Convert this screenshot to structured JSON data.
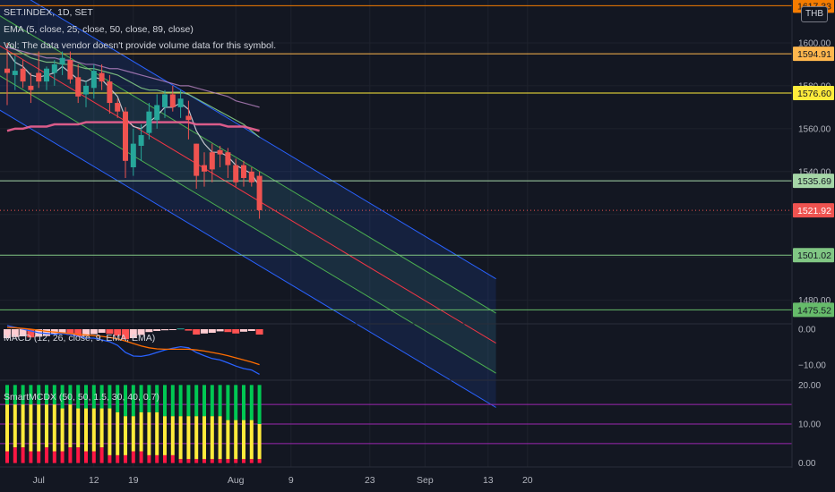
{
  "currency_button": "THB",
  "legend": {
    "symbol": "SET.INDEX, 1D, SET",
    "ema": "EMA (5, close, 25, close, 50, close, 89, close)",
    "vol": "Vol: The data vendor doesn't provide volume data for this symbol.",
    "macd": "MACD (12, 26, close, 9, EMA, EMA)",
    "smart": "SmartMCDX (50, 50, 1.5, 30, 40, 0.7)"
  },
  "colors": {
    "background": "#131722",
    "up": "#26a69a",
    "down": "#ef5350",
    "grid": "#1e222d",
    "text": "#b2b5be"
  },
  "chart_data": {
    "type": "candlestick",
    "price_axis": {
      "ticks": [
        1480,
        1500,
        1520,
        1540,
        1560,
        1580,
        1600
      ],
      "tick_labels": [
        "1480.00",
        "1500.00",
        "1520.00",
        "1540.00",
        "1560.00",
        "1580.00",
        "1600.00"
      ],
      "range": [
        1469,
        1620
      ]
    },
    "date_axis": {
      "labels": [
        "Jul",
        "12",
        "19",
        "Aug",
        "9",
        "23",
        "Sep",
        "13",
        "20"
      ],
      "label_day_index": [
        4,
        11,
        16,
        29,
        36,
        46,
        53,
        61,
        66
      ]
    },
    "horizontal_levels": [
      {
        "price": 1617.33,
        "label": "1617.33",
        "color": "#f57c00"
      },
      {
        "price": 1594.91,
        "label": "1594.91",
        "color": "#ffb74d"
      },
      {
        "price": 1576.6,
        "label": "1576.60",
        "color": "#ffeb3b"
      },
      {
        "price": 1535.69,
        "label": "1535.69",
        "color": "#a5d6a7"
      },
      {
        "price": 1501.02,
        "label": "1501.02",
        "color": "#81c784"
      },
      {
        "price": 1475.52,
        "label": "1475.52",
        "color": "#66bb6a"
      }
    ],
    "last_price": {
      "price": 1521.92,
      "label": "1521.92",
      "color": "#ef5350"
    },
    "candles": [
      {
        "o": 1588,
        "h": 1600,
        "l": 1571,
        "c": 1586
      },
      {
        "o": 1585,
        "h": 1594,
        "l": 1578,
        "c": 1587
      },
      {
        "o": 1588,
        "h": 1592,
        "l": 1579,
        "c": 1582
      },
      {
        "o": 1580,
        "h": 1586,
        "l": 1572,
        "c": 1578
      },
      {
        "o": 1586,
        "h": 1596,
        "l": 1579,
        "c": 1582
      },
      {
        "o": 1582,
        "h": 1589,
        "l": 1578,
        "c": 1588
      },
      {
        "o": 1586,
        "h": 1592,
        "l": 1580,
        "c": 1590
      },
      {
        "o": 1590,
        "h": 1596,
        "l": 1585,
        "c": 1593
      },
      {
        "o": 1592,
        "h": 1596,
        "l": 1581,
        "c": 1583
      },
      {
        "o": 1584,
        "h": 1590,
        "l": 1572,
        "c": 1575
      },
      {
        "o": 1576,
        "h": 1582,
        "l": 1570,
        "c": 1580
      },
      {
        "o": 1579,
        "h": 1590,
        "l": 1574,
        "c": 1587
      },
      {
        "o": 1586,
        "h": 1590,
        "l": 1578,
        "c": 1582
      },
      {
        "o": 1582,
        "h": 1585,
        "l": 1567,
        "c": 1572
      },
      {
        "o": 1572,
        "h": 1574,
        "l": 1565,
        "c": 1568
      },
      {
        "o": 1568,
        "h": 1570,
        "l": 1537,
        "c": 1545
      },
      {
        "o": 1542,
        "h": 1560,
        "l": 1538,
        "c": 1553
      },
      {
        "o": 1552,
        "h": 1562,
        "l": 1545,
        "c": 1557
      },
      {
        "o": 1558,
        "h": 1572,
        "l": 1555,
        "c": 1568
      },
      {
        "o": 1564,
        "h": 1576,
        "l": 1560,
        "c": 1571
      },
      {
        "o": 1570,
        "h": 1578,
        "l": 1565,
        "c": 1576
      },
      {
        "o": 1576,
        "h": 1580,
        "l": 1568,
        "c": 1570
      },
      {
        "o": 1570,
        "h": 1578,
        "l": 1565,
        "c": 1574
      },
      {
        "o": 1566,
        "h": 1573,
        "l": 1555,
        "c": 1564
      },
      {
        "o": 1553,
        "h": 1553,
        "l": 1532,
        "c": 1538
      },
      {
        "o": 1543,
        "h": 1549,
        "l": 1533,
        "c": 1540
      },
      {
        "o": 1549,
        "h": 1553,
        "l": 1535,
        "c": 1541
      },
      {
        "o": 1550,
        "h": 1552,
        "l": 1542,
        "c": 1548
      },
      {
        "o": 1549,
        "h": 1551,
        "l": 1537,
        "c": 1543
      },
      {
        "o": 1543,
        "h": 1546,
        "l": 1533,
        "c": 1535
      },
      {
        "o": 1543,
        "h": 1545,
        "l": 1533,
        "c": 1537
      },
      {
        "o": 1540,
        "h": 1542,
        "l": 1533,
        "c": 1535
      },
      {
        "o": 1538,
        "h": 1540,
        "l": 1518,
        "c": 1522
      }
    ],
    "ema_lines": [
      {
        "color": "#d1d4dc",
        "values": [
          1596,
          1591,
          1589,
          1585,
          1584,
          1585,
          1586,
          1589,
          1586,
          1583,
          1582,
          1584,
          1583,
          1579,
          1575,
          1565,
          1561,
          1560,
          1563,
          1566,
          1570,
          1570,
          1572,
          1569,
          1559,
          1553,
          1549,
          1549,
          1547,
          1543,
          1541,
          1539,
          1533
        ]
      },
      {
        "color": "#81c784",
        "values": [
          1600,
          1597,
          1595,
          1593,
          1592,
          1591,
          1591,
          1590,
          1590,
          1589,
          1588,
          1588,
          1587,
          1586,
          1585,
          1583,
          1581,
          1579,
          1578,
          1578,
          1577,
          1577,
          1577,
          1576,
          1574,
          1572,
          1570,
          1568,
          1566,
          1564,
          1562,
          1559,
          1556
        ]
      },
      {
        "color": "#ce93d8",
        "values": [
          1598,
          1597,
          1596,
          1595,
          1594,
          1593,
          1593,
          1592,
          1592,
          1591,
          1590,
          1590,
          1589,
          1588,
          1588,
          1587,
          1586,
          1585,
          1584,
          1583,
          1582,
          1581,
          1580,
          1580,
          1579,
          1578,
          1577,
          1576,
          1575,
          1573,
          1572,
          1571,
          1570
        ]
      },
      {
        "color": "#f06292",
        "values": [
          1559,
          1560,
          1560,
          1561,
          1561,
          1561,
          1562,
          1562,
          1562,
          1562,
          1563,
          1563,
          1563,
          1563,
          1563,
          1563,
          1563,
          1563,
          1563,
          1563,
          1563,
          1563,
          1563,
          1563,
          1562,
          1562,
          1562,
          1562,
          1561,
          1561,
          1561,
          1560,
          1559
        ]
      }
    ],
    "channel": {
      "start_day": -2,
      "end_day": 62,
      "mid_start": 1601,
      "mid_end": 1460,
      "inner_offset": 14,
      "outer_offset": 30
    },
    "macd": {
      "ticks": [
        0,
        -10
      ],
      "tick_labels": [
        "0.00",
        "−10.00"
      ],
      "range": [
        -14,
        1.5
      ],
      "histogram": [
        -2.5,
        -2.2,
        -2.0,
        -2.3,
        -2.1,
        -1.9,
        -1.5,
        -1.2,
        -1.6,
        -2.0,
        -1.9,
        -1.4,
        -1.0,
        -1.3,
        -1.8,
        -2.8,
        -2.5,
        -1.6,
        -0.8,
        -0.5,
        -0.3,
        -0.2,
        0.2,
        -0.4,
        -1.5,
        -1.2,
        -1.0,
        -0.6,
        -0.8,
        -1.2,
        -0.7,
        -0.5,
        -1.5
      ],
      "macd_line": [
        1.0,
        0.5,
        0.0,
        -0.5,
        -1.0,
        -1.2,
        -1.4,
        -1.2,
        -1.5,
        -2.0,
        -2.5,
        -2.5,
        -3.0,
        -3.5,
        -4.5,
        -6.5,
        -7.5,
        -7.6,
        -7.2,
        -6.5,
        -5.8,
        -5.3,
        -4.9,
        -5.2,
        -6.5,
        -7.4,
        -8.2,
        -8.6,
        -9.4,
        -10.3,
        -11.0,
        -11.4,
        -12.6
      ],
      "signal_line": [
        0.5,
        0.4,
        0.2,
        0.0,
        -0.3,
        -0.6,
        -0.8,
        -1.0,
        -1.2,
        -1.4,
        -1.6,
        -1.8,
        -2.0,
        -2.3,
        -2.7,
        -3.3,
        -4.0,
        -4.7,
        -5.2,
        -5.5,
        -5.6,
        -5.6,
        -5.6,
        -5.6,
        -5.8,
        -6.1,
        -6.5,
        -6.9,
        -7.4,
        -8.0,
        -8.6,
        -9.2,
        -9.9
      ]
    },
    "smart_mcdx": {
      "ticks": [
        0,
        10,
        20
      ],
      "tick_labels": [
        "0.00",
        "10.00",
        "20.00"
      ],
      "range": [
        -1,
        21
      ],
      "levels": [
        5,
        10,
        15
      ],
      "red": [
        3,
        4,
        4,
        3,
        3,
        4,
        3,
        3,
        4,
        4,
        3,
        3,
        4,
        2,
        2,
        2,
        3,
        3,
        2,
        2,
        2,
        2,
        1,
        1,
        1,
        1,
        1,
        1,
        1,
        1,
        1,
        1,
        1
      ],
      "yellow": [
        15,
        15,
        15,
        15,
        15,
        15,
        15,
        14,
        15,
        14,
        14,
        14,
        14,
        14,
        13,
        12,
        12,
        13,
        13,
        13,
        12,
        12,
        12,
        12,
        12,
        12,
        12,
        12,
        11,
        11,
        11,
        11,
        10
      ]
    }
  }
}
